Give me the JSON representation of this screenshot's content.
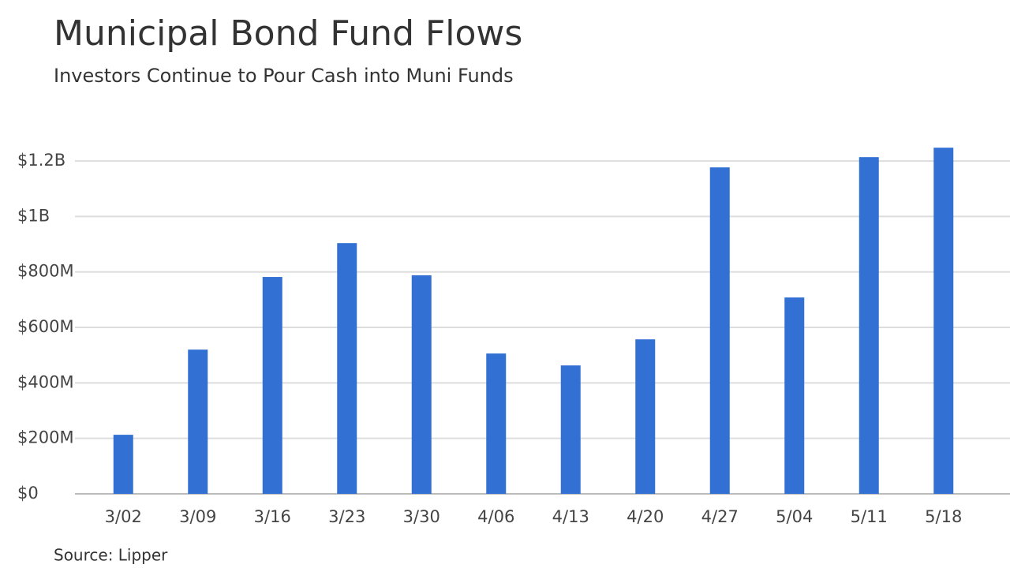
{
  "chart_data": {
    "type": "bar",
    "title": "Municipal Bond Fund Flows",
    "subtitle": "Investors Continue to Pour Cash into Muni Funds",
    "source": "Source: Lipper",
    "categories": [
      "3/02",
      "3/09",
      "3/16",
      "3/23",
      "3/30",
      "4/06",
      "4/13",
      "4/20",
      "4/27",
      "5/04",
      "5/11",
      "5/18"
    ],
    "values": [
      213000000,
      520000000,
      782000000,
      904000000,
      788000000,
      506000000,
      463000000,
      557000000,
      1177000000,
      708000000,
      1214000000,
      1248000000
    ],
    "color": "#3370d4",
    "ylim": [
      0,
      1260000000
    ],
    "yticks": [
      {
        "value": 0,
        "label": "$0"
      },
      {
        "value": 200000000,
        "label": "$200M"
      },
      {
        "value": 400000000,
        "label": "$400M"
      },
      {
        "value": 600000000,
        "label": "$600M"
      },
      {
        "value": 800000000,
        "label": "$800M"
      },
      {
        "value": 1000000000,
        "label": "$1B"
      },
      {
        "value": 1200000000,
        "label": "$1.2B"
      }
    ],
    "grid": true
  }
}
